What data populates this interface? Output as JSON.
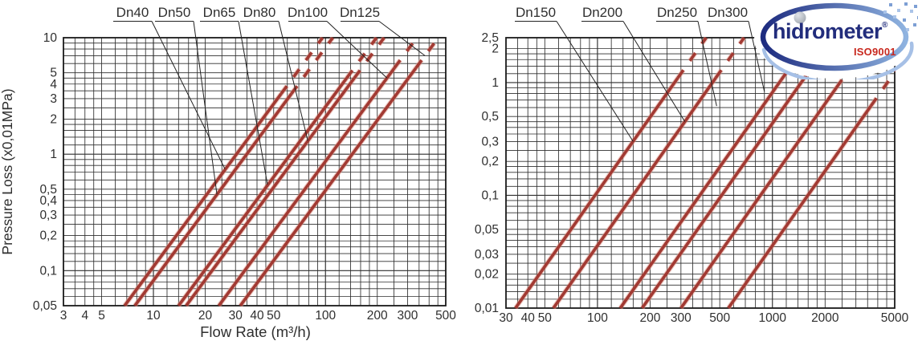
{
  "page": {
    "background": "#ffffff"
  },
  "style": {
    "line_color": "#a23a33",
    "line_halo": "#dd9a8c",
    "grid_color": "#2e2e2e",
    "border_color": "#1a1a1a",
    "text_color": "#2f2f2f",
    "leader_color": "#222222"
  },
  "logo": {
    "brand": "hidrometer",
    "registered": "®",
    "cert": "ISO9001",
    "colors": {
      "brand_text": "#222d7c",
      "cert_text": "#c8281e",
      "ring_dark": "#1d2b7f",
      "ring_light": "#8fb3e0",
      "swoosh": "#a6c0e6",
      "ball_light": "#e2e5e9",
      "ball_dark": "#99a0a9",
      "dot_dark": "#7d9fd4",
      "dot_light": "#aac3e8"
    }
  },
  "chart_data": [
    {
      "type": "line",
      "id": "small-meters",
      "log_x": true,
      "log_y": true,
      "grid": true,
      "xlabel": "Flow Rate (m³/h)",
      "ylabel": "Pressure Loss (x0,01MPa)",
      "xlim": [
        3,
        500
      ],
      "ylim": [
        0.05,
        10
      ],
      "slope_loglog": 2.0,
      "x_ticks": [
        {
          "v": 3,
          "t": "3"
        },
        {
          "v": 4,
          "t": "4"
        },
        {
          "v": 5,
          "t": "5"
        },
        {
          "v": 10,
          "t": "10"
        },
        {
          "v": 20,
          "t": "20"
        },
        {
          "v": 30,
          "t": "30"
        },
        {
          "v": 40,
          "t": "40"
        },
        {
          "v": 50,
          "t": "50"
        },
        {
          "v": 100,
          "t": "100"
        },
        {
          "v": 200,
          "t": "200"
        },
        {
          "v": 300,
          "t": "300"
        },
        {
          "v": 500,
          "t": "500"
        }
      ],
      "y_ticks": [
        {
          "v": 10,
          "t": "10"
        },
        {
          "v": 5,
          "t": "5"
        },
        {
          "v": 4,
          "t": "4"
        },
        {
          "v": 3,
          "t": "3"
        },
        {
          "v": 2,
          "t": "2"
        },
        {
          "v": 1,
          "t": "1"
        },
        {
          "v": 0.5,
          "t": "0,5"
        },
        {
          "v": 0.4,
          "t": "0,4"
        },
        {
          "v": 0.3,
          "t": "0,3"
        },
        {
          "v": 0.2,
          "t": "0,2"
        },
        {
          "v": 0.1,
          "t": "0,1"
        },
        {
          "v": 0.05,
          "t": "0,05"
        }
      ],
      "series": [
        {
          "name": "Dn40",
          "q_at_ymin": 6.8,
          "solid_until_y": 3.3,
          "dashed_above": true,
          "leader_tip": [
            26,
            0.75
          ]
        },
        {
          "name": "Dn50",
          "q_at_ymin": 7.8,
          "solid_until_y": 3.3,
          "dashed_above": true,
          "leader_tip": [
            23.4,
            0.45
          ]
        },
        {
          "name": "Dn65",
          "q_at_ymin": 14,
          "solid_until_y": 4.5,
          "dashed_above": true,
          "leader_tip": [
            46,
            0.55
          ]
        },
        {
          "name": "Dn80",
          "q_at_ymin": 15.5,
          "solid_until_y": 4.5,
          "dashed_above": true,
          "leader_tip": [
            79,
            1.3
          ]
        },
        {
          "name": "Dn100",
          "q_at_ymin": 24,
          "solid_until_y": 5.5,
          "dashed_above": true,
          "leader_tip": [
            228,
            4.5
          ]
        },
        {
          "name": "Dn125",
          "q_at_ymin": 32,
          "solid_until_y": 5.5,
          "dashed_above": true,
          "leader_tip": [
            379,
            7
          ]
        }
      ]
    },
    {
      "type": "line",
      "id": "large-meters",
      "log_x": true,
      "log_y": true,
      "grid": true,
      "xlabel": "",
      "ylabel": "",
      "xlim": [
        30,
        5000
      ],
      "ylim": [
        0.01,
        2.5
      ],
      "slope_loglog": 2.2,
      "x_ticks": [
        {
          "v": 30,
          "t": "30"
        },
        {
          "v": 40,
          "t": "40"
        },
        {
          "v": 50,
          "t": "50"
        },
        {
          "v": 100,
          "t": "100"
        },
        {
          "v": 200,
          "t": "200"
        },
        {
          "v": 300,
          "t": "300"
        },
        {
          "v": 500,
          "t": "500"
        },
        {
          "v": 1000,
          "t": "1000"
        },
        {
          "v": 2000,
          "t": "2000"
        },
        {
          "v": 5000,
          "t": "5000"
        }
      ],
      "y_ticks": [
        {
          "v": 2.5,
          "t": "2,5"
        },
        {
          "v": 2,
          "t": "2"
        },
        {
          "v": 1,
          "t": "1"
        },
        {
          "v": 0.5,
          "t": "0,5"
        },
        {
          "v": 0.3,
          "t": "0,3"
        },
        {
          "v": 0.2,
          "t": "0,2"
        },
        {
          "v": 0.1,
          "t": "0,1"
        },
        {
          "v": 0.05,
          "t": "0,05"
        },
        {
          "v": 0.03,
          "t": "0,03"
        },
        {
          "v": 0.02,
          "t": "0,02"
        },
        {
          "v": 0.01,
          "t": "0,01"
        }
      ],
      "series": [
        {
          "name": "Dn150",
          "q_at_ymin": 34,
          "solid_until_y": 1.1,
          "dashed_above": true,
          "leader_tip": [
            160,
            0.3
          ]
        },
        {
          "name": "Dn200",
          "q_at_ymin": 56,
          "solid_until_y": 1.1,
          "dashed_above": true,
          "leader_tip": [
            316,
            0.45
          ]
        },
        {
          "name": "Dn250",
          "q_at_ymin": 135,
          "solid_until_y": 1.05,
          "dashed_above": true,
          "leader_tip": [
            480,
            0.62
          ]
        },
        {
          "name": "Dn300",
          "q_at_ymin": 180,
          "solid_until_y": 1.0,
          "dashed_above": true,
          "leader_tip": [
            900,
            0.83
          ]
        },
        {
          "name": null,
          "q_at_ymin": 300,
          "solid_until_y": 0.9,
          "dashed_above": true,
          "leader_tip": null
        },
        {
          "name": null,
          "q_at_ymin": 560,
          "solid_until_y": 0.62,
          "dashed_above": true,
          "leader_tip": null
        }
      ]
    }
  ]
}
